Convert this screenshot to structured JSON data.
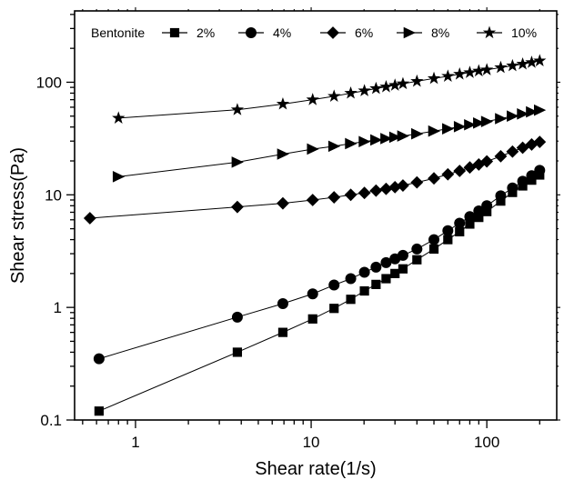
{
  "chart_data": {
    "type": "scatter",
    "xlabel": "Shear rate(1/s)",
    "ylabel": "Shear stress(Pa)",
    "x_scale": "log",
    "y_scale": "log",
    "xlim": [
      0.45,
      250
    ],
    "ylim": [
      0.1,
      430
    ],
    "x_ticks": [
      {
        "value": 1,
        "label": "1"
      },
      {
        "value": 10,
        "label": "10"
      },
      {
        "value": 100,
        "label": "100"
      }
    ],
    "y_ticks": [
      {
        "value": 0.1,
        "label": "0.1"
      },
      {
        "value": 1,
        "label": "1"
      },
      {
        "value": 10,
        "label": "10"
      },
      {
        "value": 100,
        "label": "100"
      }
    ],
    "legend": {
      "title": "Bentonite",
      "placement": "top"
    },
    "series": [
      {
        "name": "2%",
        "marker": "square",
        "x": [
          0.62,
          3.8,
          6.9,
          10.2,
          13.5,
          16.8,
          20.1,
          23.4,
          26.7,
          30.0,
          33.3,
          40,
          50,
          60,
          70,
          80,
          90,
          100,
          120,
          140,
          160,
          180,
          200
        ],
        "y": [
          0.12,
          0.4,
          0.6,
          0.79,
          0.98,
          1.18,
          1.4,
          1.6,
          1.8,
          2.0,
          2.2,
          2.65,
          3.3,
          4.0,
          4.7,
          5.5,
          6.3,
          7.1,
          8.8,
          10.5,
          12.0,
          13.5,
          15.0
        ]
      },
      {
        "name": "4%",
        "marker": "circle",
        "x": [
          0.62,
          3.8,
          6.9,
          10.2,
          13.5,
          16.8,
          20.1,
          23.4,
          26.7,
          30.0,
          33.3,
          40,
          50,
          60,
          70,
          80,
          90,
          100,
          120,
          140,
          160,
          180,
          200
        ],
        "y": [
          0.35,
          0.82,
          1.08,
          1.32,
          1.58,
          1.8,
          2.05,
          2.28,
          2.5,
          2.7,
          2.9,
          3.3,
          4.0,
          4.8,
          5.6,
          6.4,
          7.2,
          8.0,
          9.8,
          11.5,
          13.2,
          14.8,
          16.5
        ]
      },
      {
        "name": "6%",
        "marker": "diamond",
        "x": [
          0.55,
          3.8,
          6.9,
          10.2,
          13.5,
          16.8,
          20.1,
          23.4,
          26.7,
          30.0,
          33.3,
          40,
          50,
          60,
          70,
          80,
          90,
          100,
          120,
          140,
          160,
          180,
          200
        ],
        "y": [
          6.2,
          7.8,
          8.4,
          9.0,
          9.5,
          10.0,
          10.4,
          10.9,
          11.3,
          11.7,
          12.1,
          12.9,
          14.0,
          15.2,
          16.3,
          17.5,
          18.6,
          19.8,
          22.0,
          24.2,
          26.2,
          28.0,
          29.5
        ]
      },
      {
        "name": "8%",
        "marker": "triangle-right",
        "x": [
          0.8,
          3.8,
          6.9,
          10.2,
          13.5,
          16.8,
          20.1,
          23.4,
          26.7,
          30.0,
          33.3,
          40,
          50,
          60,
          70,
          80,
          90,
          100,
          120,
          140,
          160,
          180,
          200
        ],
        "y": [
          14.5,
          19.5,
          23.0,
          25.5,
          27.0,
          28.5,
          29.7,
          30.7,
          31.6,
          32.5,
          33.3,
          34.8,
          36.8,
          38.6,
          40.3,
          41.9,
          43.4,
          44.8,
          47.5,
          50.0,
          52.3,
          54.5,
          56.5
        ]
      },
      {
        "name": "10%",
        "marker": "star",
        "x": [
          0.8,
          3.8,
          6.9,
          10.2,
          13.5,
          16.8,
          20.1,
          23.4,
          26.7,
          30.0,
          33.3,
          40,
          50,
          60,
          70,
          80,
          90,
          100,
          120,
          140,
          160,
          180,
          200
        ],
        "y": [
          48,
          57,
          64,
          70,
          75,
          80,
          84,
          88,
          91,
          94,
          97,
          102,
          108,
          113,
          118,
          122,
          126,
          129,
          135,
          140,
          145,
          150,
          155
        ]
      }
    ]
  }
}
